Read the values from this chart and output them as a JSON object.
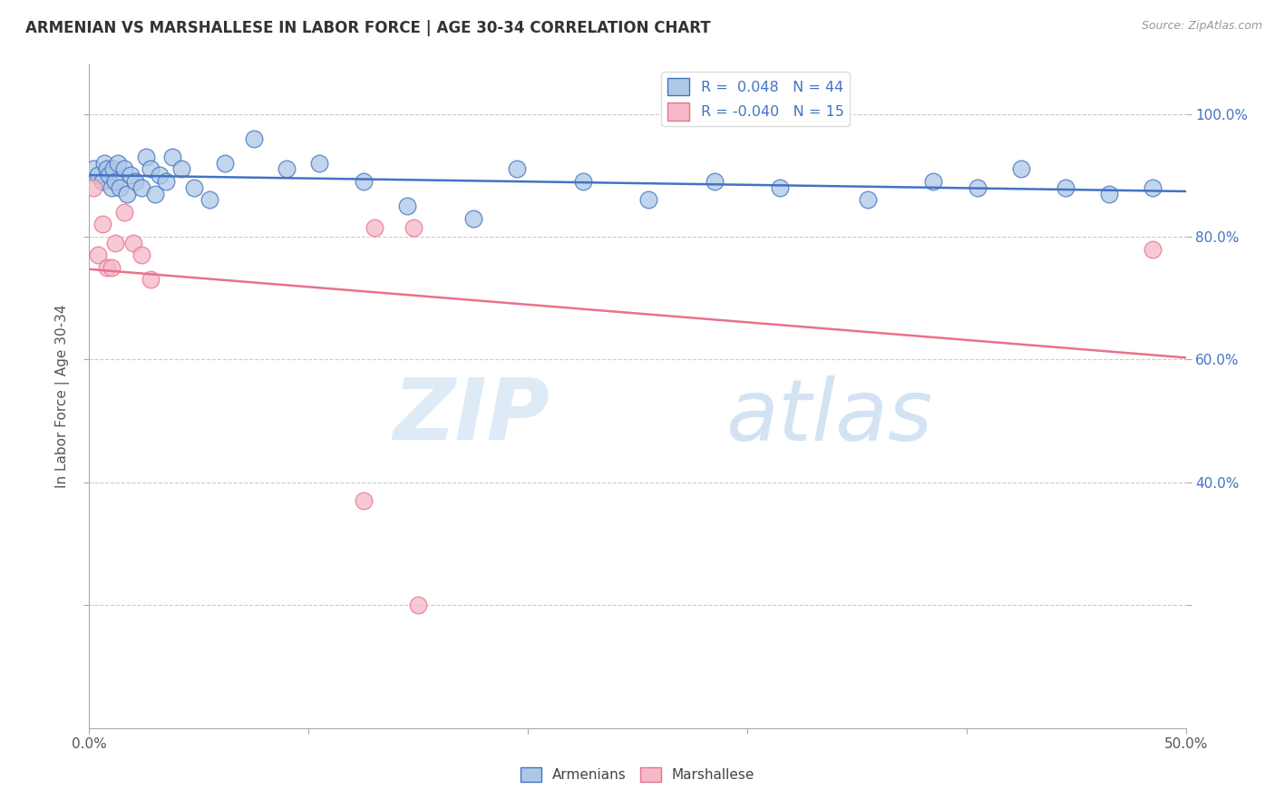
{
  "title": "ARMENIAN VS MARSHALLESE IN LABOR FORCE | AGE 30-34 CORRELATION CHART",
  "source": "Source: ZipAtlas.com",
  "ylabel": "In Labor Force | Age 30-34",
  "xlim": [
    0.0,
    0.5
  ],
  "ylim": [
    0.0,
    1.08
  ],
  "armenian_R": "0.048",
  "armenian_N": "44",
  "marshallese_R": "-0.040",
  "marshallese_N": "15",
  "armenian_color": "#adc8e6",
  "armenian_line_color": "#4472c4",
  "marshallese_color": "#f5b8c8",
  "marshallese_line_color": "#e8728a",
  "armenian_x": [
    0.002,
    0.004,
    0.006,
    0.007,
    0.008,
    0.009,
    0.01,
    0.011,
    0.012,
    0.013,
    0.014,
    0.016,
    0.017,
    0.019,
    0.021,
    0.024,
    0.026,
    0.028,
    0.03,
    0.032,
    0.035,
    0.038,
    0.042,
    0.048,
    0.055,
    0.062,
    0.075,
    0.09,
    0.105,
    0.125,
    0.145,
    0.175,
    0.195,
    0.225,
    0.255,
    0.285,
    0.315,
    0.355,
    0.385,
    0.405,
    0.425,
    0.445,
    0.465,
    0.485
  ],
  "armenian_y": [
    0.91,
    0.9,
    0.89,
    0.92,
    0.91,
    0.9,
    0.88,
    0.91,
    0.89,
    0.92,
    0.88,
    0.91,
    0.87,
    0.9,
    0.89,
    0.88,
    0.93,
    0.91,
    0.87,
    0.9,
    0.89,
    0.93,
    0.91,
    0.88,
    0.86,
    0.92,
    0.96,
    0.91,
    0.92,
    0.89,
    0.85,
    0.83,
    0.91,
    0.89,
    0.86,
    0.89,
    0.88,
    0.86,
    0.89,
    0.88,
    0.91,
    0.88,
    0.87,
    0.88
  ],
  "marshallese_x": [
    0.002,
    0.004,
    0.006,
    0.008,
    0.01,
    0.012,
    0.016,
    0.02,
    0.024,
    0.028,
    0.125,
    0.13,
    0.148,
    0.15,
    0.485
  ],
  "marshallese_y": [
    0.88,
    0.77,
    0.82,
    0.75,
    0.75,
    0.79,
    0.84,
    0.79,
    0.77,
    0.73,
    0.37,
    0.815,
    0.815,
    0.2,
    0.78
  ],
  "watermark_zip": "ZIP",
  "watermark_atlas": "atlas",
  "background_color": "#ffffff",
  "grid_color": "#cccccc",
  "grid_yticks": [
    0.2,
    0.4,
    0.6,
    0.8,
    1.0
  ],
  "right_ytick_labels": [
    "",
    "40.0%",
    "60.0%",
    "80.0%",
    "100.0%"
  ],
  "right_ytick_values": [
    0.2,
    0.4,
    0.6,
    0.8,
    1.0
  ]
}
